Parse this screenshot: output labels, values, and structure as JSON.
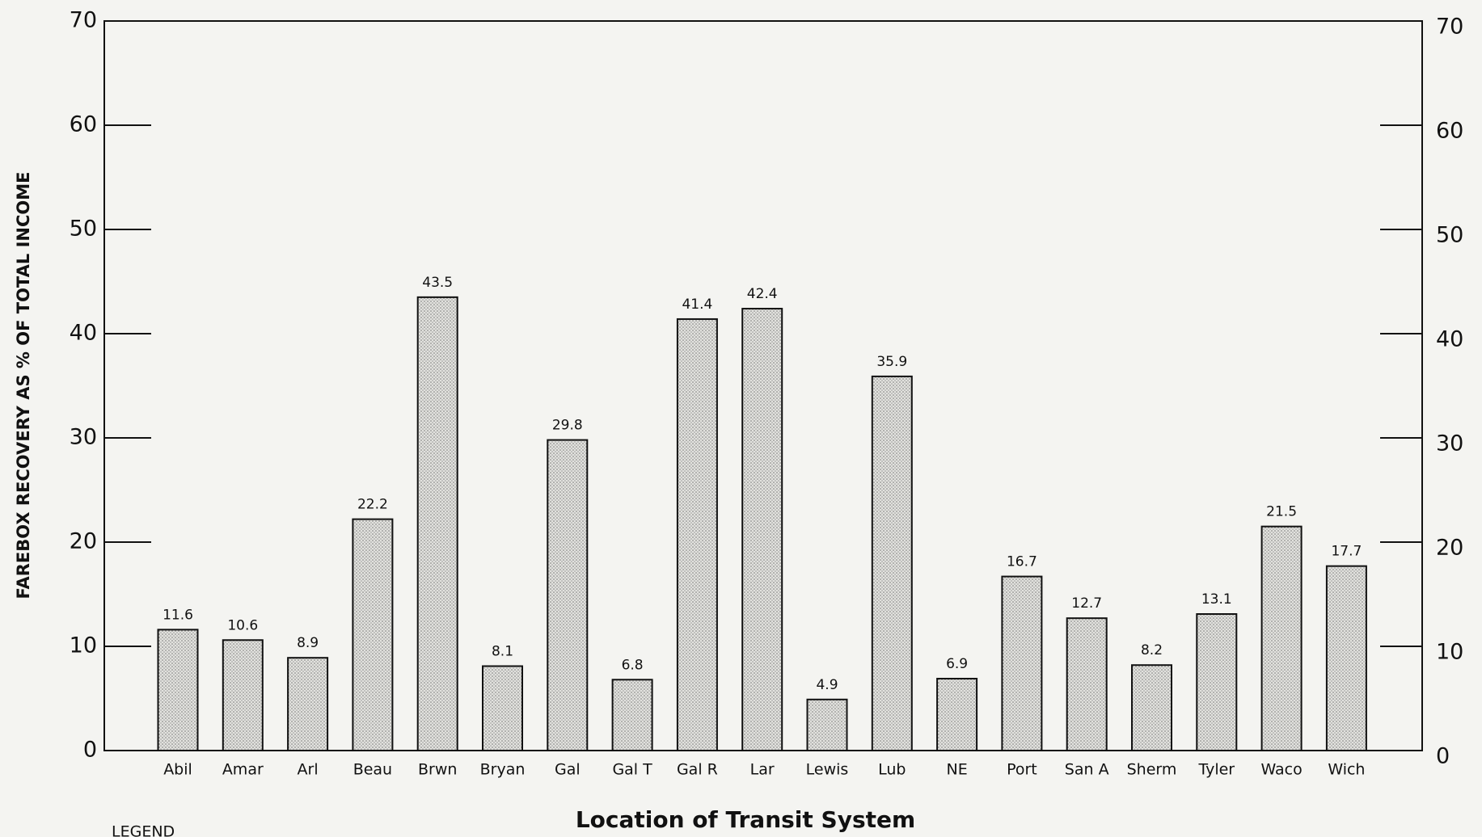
{
  "chart_data": {
    "type": "bar",
    "y_label": "FAREBOX RECOVERY AS % OF TOTAL INCOME",
    "x_label": "Location of Transit System",
    "legend_title": "LEGEND",
    "categories": [
      "Abil",
      "Amar",
      "Arl",
      "Beau",
      "Brwn",
      "Bryan",
      "Gal",
      "Gal T",
      "Gal R",
      "Lar",
      "Lewis",
      "Lub",
      "NE",
      "Port",
      "San A",
      "Sherm",
      "Tyler",
      "Waco",
      "Wich"
    ],
    "values": [
      11.6,
      10.6,
      8.9,
      22.2,
      43.5,
      8.1,
      29.8,
      6.8,
      41.4,
      42.4,
      4.9,
      35.9,
      6.9,
      16.7,
      12.7,
      8.2,
      13.1,
      21.5,
      17.7
    ],
    "color": "#d4d4d0",
    "ylim": [
      0,
      70
    ],
    "yticks": [
      0,
      10,
      20,
      30,
      40,
      50,
      60,
      70
    ],
    "y2lim": [
      0,
      70
    ],
    "y2ticks": [
      0,
      10,
      20,
      30,
      40,
      50,
      60,
      70
    ]
  }
}
